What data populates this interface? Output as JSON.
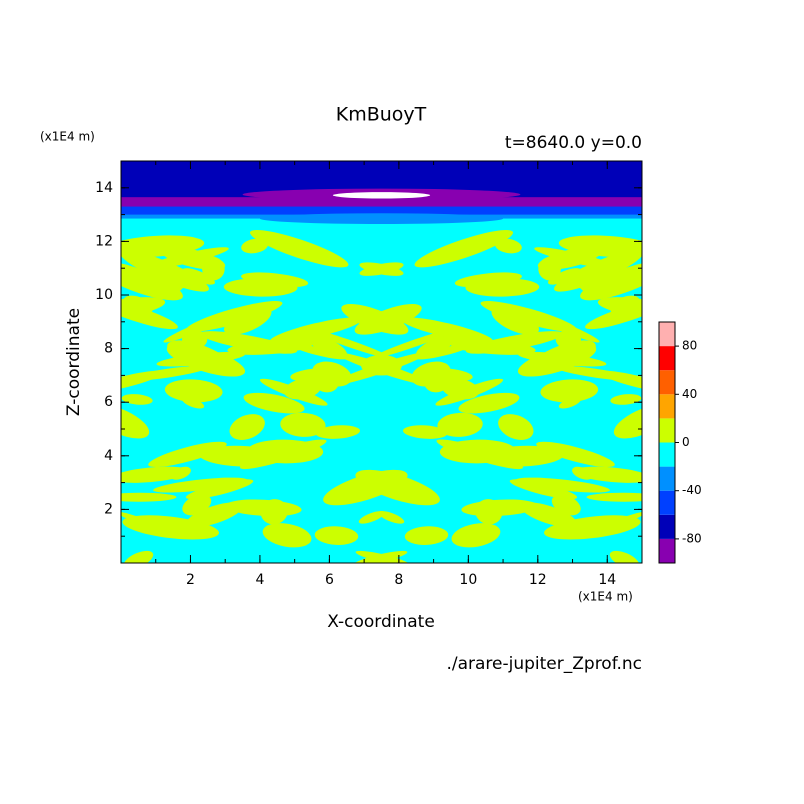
{
  "chart_data": {
    "type": "contour",
    "title": "KmBuoyT",
    "subtitle": "t=8640.0 y=0.0",
    "x_label": "X-coordinate",
    "y_label": "Z-coordinate",
    "x_unit": "(x1E4 m)",
    "y_unit": "(x1E4 m)",
    "source": "./arare-jupiter_Zprof.nc",
    "xlim": [
      0,
      15
    ],
    "ylim": [
      0,
      15
    ],
    "xticks": [
      2,
      4,
      6,
      8,
      10,
      12,
      14
    ],
    "yticks": [
      2,
      4,
      6,
      8,
      10,
      12,
      14
    ],
    "colorbar": {
      "levels": [
        -100,
        -80,
        -60,
        -40,
        -20,
        0,
        20,
        40,
        60,
        80,
        100
      ],
      "colors": [
        "#8800b0",
        "#0000b8",
        "#0040ff",
        "#0090ff",
        "#00ffff",
        "#ccff00",
        "#ffa500",
        "#ff6000",
        "#ff0000",
        "#ffb0b0"
      ],
      "ticks": [
        -80,
        -40,
        0,
        40,
        80
      ]
    }
  }
}
